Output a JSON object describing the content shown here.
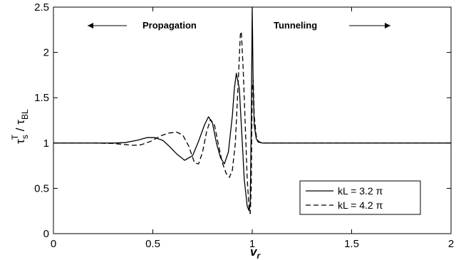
{
  "chart_data": {
    "type": "line",
    "title": "",
    "xlabel": "v_r",
    "ylabel": "τ_s^T / τ_BL",
    "xlabel_main": "v",
    "xlabel_sub": "r",
    "ylabel_parts": {
      "tau_s": "τ",
      "s_sub": "s",
      "t_sup": "T",
      "slash": " / ",
      "tau_bl": "τ",
      "bl_sub": "BL"
    },
    "xlim": [
      0,
      2
    ],
    "ylim": [
      0,
      2.5
    ],
    "xticks": [
      0,
      0.5,
      1,
      1.5,
      2
    ],
    "xtick_labels": [
      "0",
      "0.5",
      "1",
      "1.5",
      "2"
    ],
    "yticks": [
      0,
      0.5,
      1,
      1.5,
      2,
      2.5
    ],
    "ytick_labels": [
      "0",
      "0.5",
      "1",
      "1.5",
      "2",
      "2.5"
    ],
    "grid": false,
    "legend_position": "lower-right",
    "annotations": [
      {
        "text": "Propagation",
        "arrow": "left"
      },
      {
        "text": "Tunneling",
        "arrow": "right"
      }
    ],
    "series": [
      {
        "name": "kL = 3.2 π",
        "style": "solid",
        "color": "#000000",
        "points": [
          [
            0,
            1.0
          ],
          [
            0.1,
            1.0
          ],
          [
            0.2,
            1.0
          ],
          [
            0.3,
            1.0
          ],
          [
            0.36,
            1.005
          ],
          [
            0.42,
            1.03
          ],
          [
            0.47,
            1.06
          ],
          [
            0.51,
            1.06
          ],
          [
            0.55,
            1.03
          ],
          [
            0.58,
            0.97
          ],
          [
            0.62,
            0.88
          ],
          [
            0.66,
            0.81
          ],
          [
            0.7,
            0.86
          ],
          [
            0.73,
            1.02
          ],
          [
            0.76,
            1.2
          ],
          [
            0.78,
            1.29
          ],
          [
            0.8,
            1.22
          ],
          [
            0.82,
            1.0
          ],
          [
            0.84,
            0.84
          ],
          [
            0.86,
            0.77
          ],
          [
            0.88,
            0.9
          ],
          [
            0.9,
            1.3
          ],
          [
            0.91,
            1.6
          ],
          [
            0.92,
            1.77
          ],
          [
            0.935,
            1.6
          ],
          [
            0.95,
            1.0
          ],
          [
            0.96,
            0.6
          ],
          [
            0.975,
            0.3
          ],
          [
            0.985,
            0.25
          ],
          [
            0.99,
            0.35
          ],
          [
            0.995,
            1.2
          ],
          [
            1.0,
            2.5
          ],
          [
            1.005,
            1.6
          ],
          [
            1.01,
            1.2
          ],
          [
            1.02,
            1.05
          ],
          [
            1.03,
            1.01
          ],
          [
            1.05,
            1.0
          ],
          [
            1.2,
            1.0
          ],
          [
            1.5,
            1.0
          ],
          [
            2.0,
            1.0
          ]
        ]
      },
      {
        "name": "kL = 4.2 π",
        "style": "dashed",
        "color": "#000000",
        "points": [
          [
            0,
            1.0
          ],
          [
            0.1,
            1.0
          ],
          [
            0.2,
            1.0
          ],
          [
            0.3,
            0.995
          ],
          [
            0.35,
            0.985
          ],
          [
            0.4,
            0.975
          ],
          [
            0.44,
            0.98
          ],
          [
            0.49,
            1.02
          ],
          [
            0.54,
            1.08
          ],
          [
            0.58,
            1.11
          ],
          [
            0.62,
            1.12
          ],
          [
            0.65,
            1.09
          ],
          [
            0.68,
            0.97
          ],
          [
            0.71,
            0.78
          ],
          [
            0.73,
            0.77
          ],
          [
            0.75,
            0.9
          ],
          [
            0.77,
            1.12
          ],
          [
            0.79,
            1.26
          ],
          [
            0.81,
            1.2
          ],
          [
            0.83,
            0.98
          ],
          [
            0.85,
            0.78
          ],
          [
            0.87,
            0.66
          ],
          [
            0.885,
            0.62
          ],
          [
            0.9,
            0.7
          ],
          [
            0.915,
            1.0
          ],
          [
            0.93,
            1.7
          ],
          [
            0.94,
            2.2
          ],
          [
            0.945,
            2.23
          ],
          [
            0.955,
            1.8
          ],
          [
            0.965,
            1.2
          ],
          [
            0.975,
            0.6
          ],
          [
            0.985,
            0.25
          ],
          [
            0.99,
            0.22
          ],
          [
            0.995,
            0.5
          ],
          [
            1.0,
            1.6
          ],
          [
            1.005,
            1.7
          ],
          [
            1.01,
            1.3
          ],
          [
            1.02,
            1.08
          ],
          [
            1.03,
            1.02
          ],
          [
            1.05,
            1.0
          ],
          [
            1.2,
            1.0
          ],
          [
            1.5,
            1.0
          ],
          [
            2.0,
            1.0
          ]
        ]
      }
    ]
  }
}
